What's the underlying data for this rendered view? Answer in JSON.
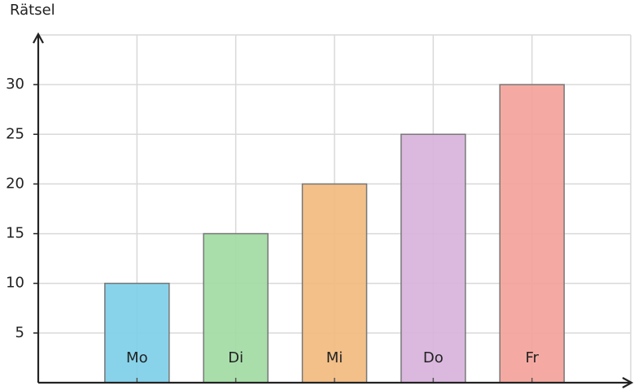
{
  "chart_data": {
    "type": "bar",
    "y_label": "Rätsel",
    "categories": [
      "Mo",
      "Di",
      "Mi",
      "Do",
      "Fr"
    ],
    "values": [
      10,
      15,
      20,
      25,
      30
    ],
    "colors": [
      "#7fcfe8",
      "#a2dba4",
      "#f2bb80",
      "#d8b3dc",
      "#f3a39a"
    ],
    "ylim": [
      0,
      35
    ],
    "yticks": [
      5,
      10,
      15,
      20,
      25,
      30
    ],
    "grid": true
  }
}
